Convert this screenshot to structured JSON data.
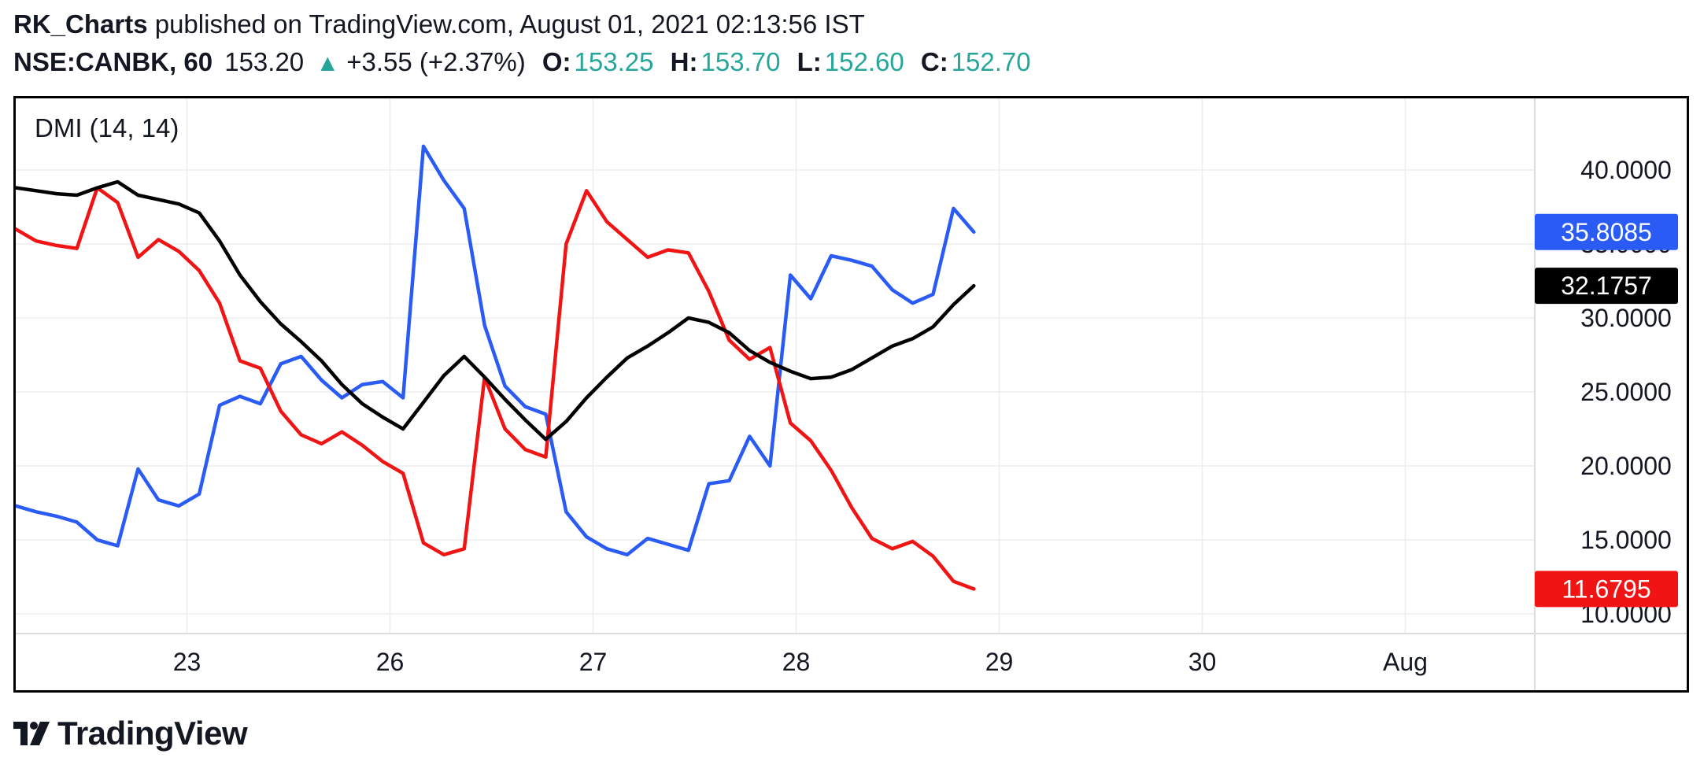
{
  "header": {
    "user": "RK_Charts",
    "published_text": "published on TradingView.com, August 01, 2021 02:13:56 IST",
    "symbol": "NSE:CANBK, 60",
    "price": "153.20",
    "change": "+3.55 (+2.37%)",
    "o_label": "O:",
    "o_value": "153.25",
    "h_label": "H:",
    "h_value": "153.70",
    "l_label": "L:",
    "l_value": "152.60",
    "c_label": "C:",
    "c_value": "152.70"
  },
  "footer": {
    "brand": "TradingView"
  },
  "chart_data": {
    "type": "line",
    "title": "DMI (14, 14)",
    "x_tick_labels": [
      "23",
      "26",
      "27",
      "28",
      "29",
      "30",
      "Aug"
    ],
    "y_tick_labels": [
      "40.0000",
      "35.0000",
      "30.0000",
      "25.0000",
      "20.0000",
      "15.0000",
      "10.0000"
    ],
    "ylim": [
      9.5,
      43
    ],
    "grid": true,
    "series": [
      {
        "color": "#2a5cf5",
        "last_label": "35.8085",
        "values": [
          17.3,
          16.9,
          16.6,
          16.2,
          15.0,
          14.6,
          19.8,
          17.7,
          17.3,
          18.1,
          24.1,
          24.7,
          24.2,
          26.9,
          27.4,
          25.8,
          24.6,
          25.5,
          25.7,
          24.6,
          41.6,
          39.3,
          37.4,
          29.5,
          25.4,
          24.0,
          23.5,
          16.9,
          15.2,
          14.4,
          14.0,
          15.1,
          14.7,
          14.3,
          18.8,
          19.0,
          22.0,
          20.0,
          32.9,
          31.3,
          34.2,
          33.9,
          33.5,
          31.9,
          31.0,
          31.6,
          37.4,
          35.8085
        ]
      },
      {
        "color": "#f01414",
        "last_label": "11.6795",
        "values": [
          36.0,
          35.2,
          34.9,
          34.7,
          38.8,
          37.8,
          34.1,
          35.3,
          34.5,
          33.2,
          31.0,
          27.1,
          26.6,
          23.7,
          22.1,
          21.5,
          22.3,
          21.4,
          20.3,
          19.5,
          14.8,
          14.0,
          14.4,
          26.0,
          22.5,
          21.1,
          20.6,
          35.0,
          38.6,
          36.5,
          35.3,
          34.1,
          34.6,
          34.4,
          31.8,
          28.5,
          27.2,
          28.0,
          22.9,
          21.7,
          19.7,
          17.2,
          15.1,
          14.4,
          14.9,
          13.9,
          12.2,
          11.6795
        ]
      },
      {
        "color": "#000000",
        "last_label": "32.1757",
        "values": [
          38.8,
          38.6,
          38.4,
          38.3,
          38.8,
          39.2,
          38.3,
          38.0,
          37.7,
          37.1,
          35.2,
          32.9,
          31.1,
          29.6,
          28.4,
          27.1,
          25.5,
          24.2,
          23.3,
          22.5,
          24.3,
          26.1,
          27.4,
          26.0,
          24.5,
          23.1,
          21.8,
          23.0,
          24.6,
          26.0,
          27.3,
          28.1,
          29.0,
          30.0,
          29.7,
          29.0,
          27.8,
          27.0,
          26.4,
          25.9,
          26.0,
          26.5,
          27.3,
          28.1,
          28.6,
          29.4,
          30.9,
          32.1757
        ]
      }
    ]
  }
}
